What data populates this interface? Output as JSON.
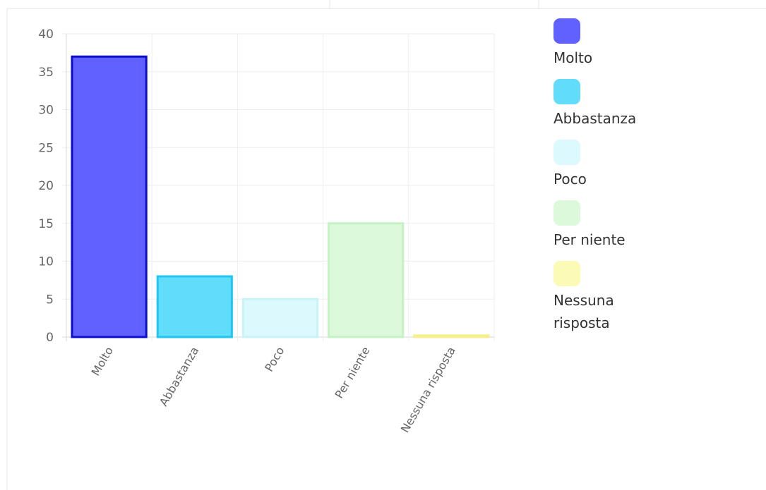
{
  "chart_data": {
    "type": "bar",
    "title": "",
    "xlabel": "",
    "ylabel": "",
    "categories": [
      "Molto",
      "Abbastanza",
      "Poco",
      "Per niente",
      "Nessuna risposta"
    ],
    "values": [
      37,
      8,
      5,
      15,
      0.2
    ],
    "ylim": [
      0,
      40
    ],
    "yticks": [
      0,
      5,
      10,
      15,
      20,
      25,
      30,
      35,
      40
    ],
    "ytick_labels": [
      "0",
      "5",
      "10",
      "15",
      "20",
      "25",
      "30",
      "35",
      "40"
    ],
    "grid": true,
    "legend_position": "right",
    "fill_colors": [
      "#6161ff",
      "#62dcfb",
      "#dcfafd",
      "#dcf9dc",
      "#fcfab7"
    ],
    "border_colors": [
      "#0c0cd2",
      "#1fc6ee",
      "#c8f3f8",
      "#c4f2c4",
      "#f5ef8e"
    ],
    "legend": [
      {
        "label": "Molto",
        "color": "#6161ff"
      },
      {
        "label": "Abbastanza",
        "color": "#62dcfb"
      },
      {
        "label": "Poco",
        "color": "#dcfafd"
      },
      {
        "label": "Per niente",
        "color": "#dcf9dc"
      },
      {
        "label": "Nessuna risposta",
        "color": "#fcfab7"
      }
    ]
  }
}
